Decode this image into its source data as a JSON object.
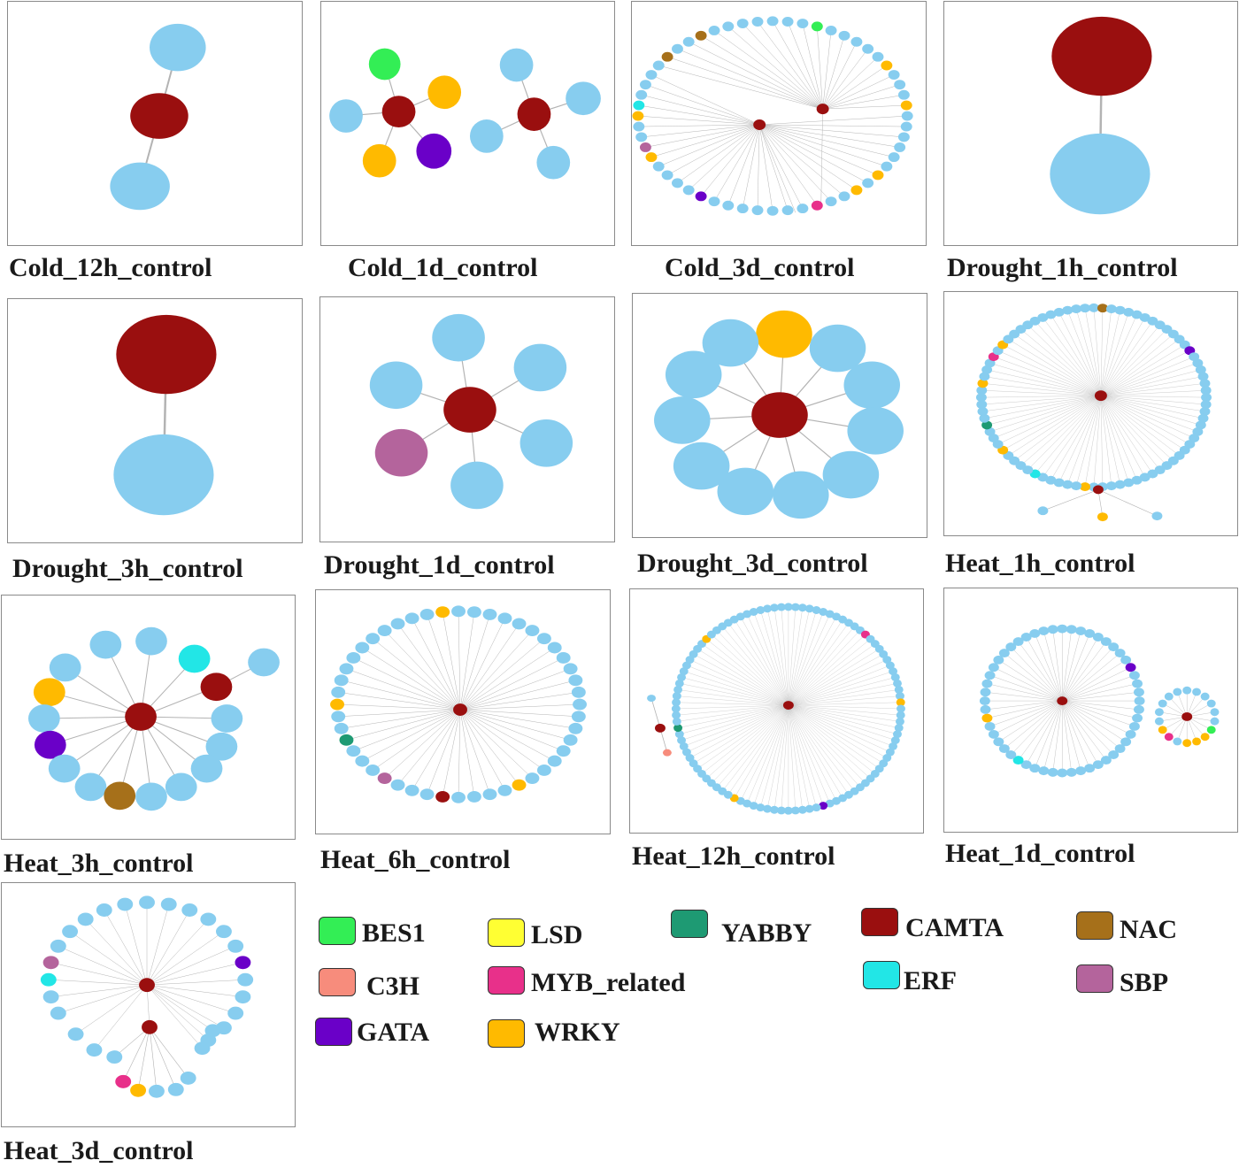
{
  "colors": {
    "BES1": "#33ee55",
    "LSD": "#ffff33",
    "YABBY": "#1e9a73",
    "CAMTA": "#9a0f0f",
    "NAC": "#a6701a",
    "C3H": "#f78c7c",
    "MYB_related": "#e8308a",
    "ERF": "#22e6e6",
    "SBP": "#b4649c",
    "GATA": "#6a00c8",
    "WRKY": "#ffba00",
    "other": "#87cdef",
    "edge": "#b3b3b3"
  },
  "panels": [
    {
      "id": "cold-12h",
      "label": "Cold_12h_control"
    },
    {
      "id": "cold-1d",
      "label": "Cold_1d_control"
    },
    {
      "id": "cold-3d",
      "label": "Cold_3d_control"
    },
    {
      "id": "drought-1h",
      "label": "Drought_1h_control"
    },
    {
      "id": "drought-3h",
      "label": "Drought_3h_control"
    },
    {
      "id": "drought-1d",
      "label": "Drought_1d_control"
    },
    {
      "id": "drought-3d",
      "label": "Drought_3d_control"
    },
    {
      "id": "heat-1h",
      "label": "Heat_1h_control"
    },
    {
      "id": "heat-3h",
      "label": "Heat_3h_control"
    },
    {
      "id": "heat-6h",
      "label": "Heat_6h_control"
    },
    {
      "id": "heat-12h",
      "label": "Heat_12h_control"
    },
    {
      "id": "heat-1d",
      "label": "Heat_1d_control"
    },
    {
      "id": "heat-3d",
      "label": "Heat_3d_control"
    }
  ],
  "legend": [
    {
      "key": "BES1",
      "label": "BES1"
    },
    {
      "key": "LSD",
      "label": "LSD"
    },
    {
      "key": "YABBY",
      "label": "YABBY"
    },
    {
      "key": "CAMTA",
      "label": "CAMTA"
    },
    {
      "key": "NAC",
      "label": "NAC"
    },
    {
      "key": "C3H",
      "label": "C3H"
    },
    {
      "key": "MYB_related",
      "label": "MYB_related"
    },
    {
      "key": "ERF",
      "label": "ERF"
    },
    {
      "key": "SBP",
      "label": "SBP"
    },
    {
      "key": "GATA",
      "label": "GATA"
    },
    {
      "key": "WRKY",
      "label": "WRKY"
    }
  ]
}
